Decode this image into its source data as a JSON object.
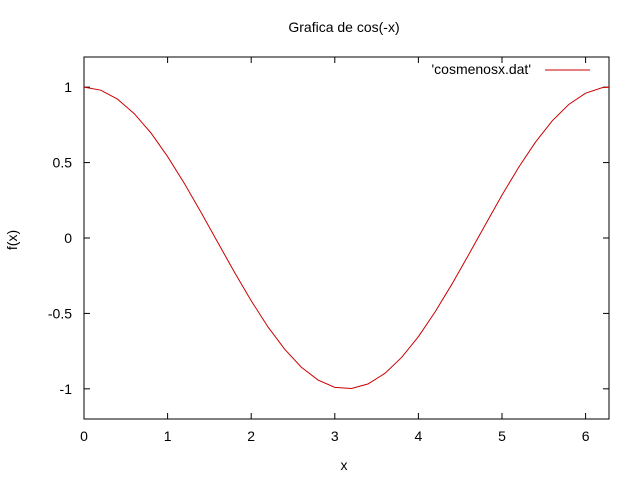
{
  "chart_data": {
    "type": "line",
    "title": "Grafica de cos(-x)",
    "xlabel": "x",
    "ylabel": "f(x)",
    "xlim": [
      0,
      6.28
    ],
    "ylim": [
      -1.2,
      1.2
    ],
    "xticks": [
      0,
      1,
      2,
      3,
      4,
      5,
      6
    ],
    "yticks": [
      1,
      0.5,
      0,
      -0.5,
      -1
    ],
    "xtick_labels": [
      "0",
      "1",
      "2",
      "3",
      "4",
      "5",
      "6"
    ],
    "ytick_labels": [
      "1",
      "0.5",
      "0",
      "-0.5",
      "-1"
    ],
    "grid": false,
    "legend_position": "top-right",
    "colors": {
      "series": "#cc0000",
      "axes": "#000000"
    },
    "series": [
      {
        "name": "'cosmenosx.dat'",
        "x": [
          0,
          0.2,
          0.4,
          0.6,
          0.8,
          1.0,
          1.2,
          1.4,
          1.6,
          1.8,
          2.0,
          2.2,
          2.4,
          2.6,
          2.8,
          3.0,
          3.2,
          3.4,
          3.6,
          3.8,
          4.0,
          4.2,
          4.4,
          4.6,
          4.8,
          5.0,
          5.2,
          5.4,
          5.6,
          5.8,
          6.0,
          6.2,
          6.28
        ],
        "y": [
          1.0,
          0.98,
          0.921,
          0.825,
          0.697,
          0.54,
          0.362,
          0.17,
          -0.029,
          -0.227,
          -0.416,
          -0.589,
          -0.737,
          -0.857,
          -0.942,
          -0.99,
          -0.998,
          -0.967,
          -0.897,
          -0.791,
          -0.654,
          -0.49,
          -0.307,
          -0.112,
          0.087,
          0.284,
          0.469,
          0.635,
          0.776,
          0.886,
          0.96,
          0.997,
          1.0
        ]
      }
    ]
  }
}
